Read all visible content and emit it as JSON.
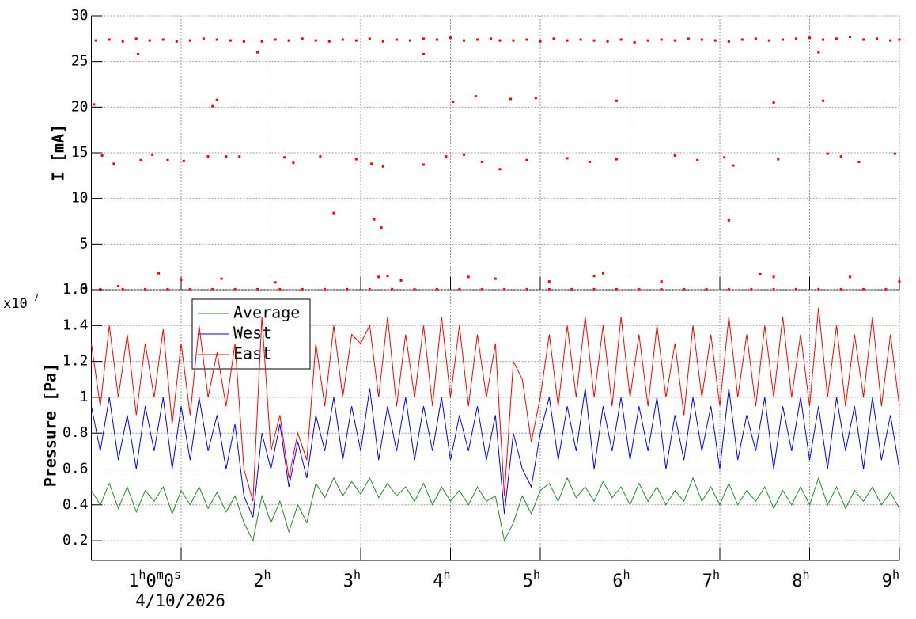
{
  "chart_data": [
    {
      "type": "scatter",
      "ylabel": "I [mA]",
      "color": "#ff0000",
      "xlim": [
        0,
        9
      ],
      "ylim": [
        0,
        30
      ],
      "xticks": [
        1,
        2,
        3,
        4,
        5,
        6,
        7,
        8,
        9
      ],
      "yticks": [
        0,
        5,
        10,
        15,
        20,
        25,
        30
      ],
      "grid": true,
      "x": [
        0.05,
        0.2,
        0.35,
        0.5,
        0.65,
        0.8,
        0.95,
        1.1,
        1.25,
        1.4,
        1.55,
        1.7,
        1.9,
        2.05,
        2.2,
        2.35,
        2.5,
        2.65,
        2.8,
        2.95,
        3.1,
        3.25,
        3.4,
        3.55,
        3.7,
        3.85,
        4.0,
        4.15,
        4.3,
        4.45,
        4.55,
        4.7,
        4.85,
        5.0,
        5.15,
        5.3,
        5.45,
        5.6,
        5.75,
        5.9,
        6.05,
        6.2,
        6.35,
        6.5,
        6.65,
        6.8,
        6.95,
        7.1,
        7.25,
        7.4,
        7.55,
        7.7,
        7.85,
        8.0,
        8.15,
        8.3,
        8.45,
        8.6,
        8.75,
        8.9,
        9.0,
        0.03,
        0.52,
        1.35,
        1.4,
        1.85,
        2.7,
        3.15,
        3.23,
        3.7,
        4.03,
        4.28,
        4.67,
        4.95,
        5.85,
        7.1,
        7.6,
        8.15,
        8.1,
        0.12,
        0.25,
        0.55,
        0.68,
        0.85,
        1.03,
        1.3,
        1.5,
        1.65,
        2.15,
        2.25,
        2.55,
        2.95,
        3.12,
        3.25,
        3.7,
        3.95,
        4.15,
        4.35,
        4.55,
        4.85,
        5.3,
        5.55,
        5.85,
        6.5,
        6.75,
        7.05,
        7.15,
        7.65,
        8.2,
        8.35,
        8.55,
        8.95,
        0.1,
        0.35,
        0.6,
        0.85,
        1.1,
        1.35,
        1.6,
        1.85,
        2.1,
        2.35,
        2.6,
        2.85,
        3.1,
        3.35,
        3.6,
        3.85,
        4.1,
        4.35,
        4.6,
        4.85,
        5.1,
        5.35,
        5.6,
        5.85,
        6.1,
        6.35,
        6.6,
        6.85,
        7.1,
        7.35,
        7.6,
        7.85,
        8.1,
        8.35,
        8.6,
        8.85,
        0.3,
        0.75,
        1.0,
        1.45,
        2.05,
        3.2,
        3.3,
        3.45,
        4.2,
        4.5,
        5.1,
        5.6,
        5.7,
        6.35,
        7.45,
        7.6,
        8.45,
        9.0
      ],
      "values": [
        27.3,
        27.4,
        27.2,
        27.5,
        27.3,
        27.4,
        27.2,
        27.3,
        27.5,
        27.4,
        27.3,
        27.2,
        27.2,
        27.4,
        27.3,
        27.5,
        27.3,
        27.2,
        27.4,
        27.3,
        27.5,
        27.2,
        27.4,
        27.3,
        27.5,
        27.4,
        27.6,
        27.3,
        27.4,
        27.5,
        27.3,
        27.3,
        27.4,
        27.2,
        27.5,
        27.3,
        27.4,
        27.3,
        27.2,
        27.4,
        27.1,
        27.3,
        27.4,
        27.3,
        27.5,
        27.4,
        27.3,
        27.2,
        27.4,
        27.5,
        27.3,
        27.4,
        27.5,
        27.6,
        27.4,
        27.5,
        27.7,
        27.4,
        27.5,
        27.3,
        27.4,
        20.3,
        25.8,
        20.1,
        20.8,
        26.0,
        8.4,
        7.7,
        6.8,
        25.8,
        20.6,
        21.2,
        20.9,
        21.0,
        20.7,
        7.6,
        20.5,
        20.7,
        26.0,
        14.7,
        13.8,
        14.2,
        14.8,
        14.2,
        14.1,
        14.6,
        14.6,
        14.6,
        14.5,
        13.9,
        14.6,
        14.3,
        13.8,
        13.5,
        13.7,
        14.6,
        14.8,
        14.0,
        13.2,
        14.2,
        14.4,
        14.0,
        14.3,
        14.7,
        14.2,
        14.5,
        13.6,
        14.3,
        14.9,
        14.6,
        14.0,
        14.9,
        0.05,
        0.05,
        0.05,
        0.05,
        0.05,
        0.05,
        0.05,
        0.05,
        0.05,
        0.05,
        0.05,
        0.05,
        0.05,
        0.05,
        0.05,
        0.05,
        0.05,
        0.05,
        0.05,
        0.05,
        0.05,
        0.05,
        0.05,
        0.05,
        0.05,
        0.05,
        0.05,
        0.05,
        0.05,
        0.05,
        0.05,
        0.05,
        0.05,
        0.05,
        0.05,
        0.05,
        0.4,
        1.8,
        1.1,
        1.2,
        0.8,
        1.4,
        1.5,
        1.0,
        1.4,
        1.2,
        0.9,
        1.5,
        1.8,
        0.9,
        1.7,
        1.4,
        1.4,
        0.9
      ]
    },
    {
      "type": "line",
      "ylabel": "Pressure [Pa]",
      "exponent_base": "x10",
      "exponent": "-7",
      "time_offset_label": "4/10/2026",
      "xlim": [
        0,
        9
      ],
      "ylim": [
        0.09,
        1.6
      ],
      "grid": true,
      "legend": "upper left",
      "xticks": [
        {
          "value": 1,
          "label": "1h0m0s"
        },
        {
          "value": 2,
          "label": "2h"
        },
        {
          "value": 3,
          "label": "3h"
        },
        {
          "value": 4,
          "label": "4h"
        },
        {
          "value": 5,
          "label": "5h"
        },
        {
          "value": 6,
          "label": "6h"
        },
        {
          "value": 7,
          "label": "7h"
        },
        {
          "value": 8,
          "label": "8h"
        },
        {
          "value": 9,
          "label": "9h"
        }
      ],
      "yticks": [
        0.2,
        0.4,
        0.6,
        0.8,
        1,
        1.2,
        1.4,
        1.6
      ],
      "x": [
        0,
        0.1,
        0.2,
        0.3,
        0.4,
        0.5,
        0.6,
        0.7,
        0.8,
        0.9,
        1,
        1.1,
        1.2,
        1.3,
        1.4,
        1.5,
        1.6,
        1.7,
        1.8,
        1.9,
        2,
        2.1,
        2.2,
        2.3,
        2.4,
        2.5,
        2.6,
        2.7,
        2.8,
        2.9,
        3,
        3.1,
        3.2,
        3.3,
        3.4,
        3.5,
        3.6,
        3.7,
        3.8,
        3.9,
        4,
        4.1,
        4.2,
        4.3,
        4.4,
        4.5,
        4.6,
        4.7,
        4.8,
        4.9,
        5,
        5.1,
        5.2,
        5.3,
        5.4,
        5.5,
        5.6,
        5.7,
        5.8,
        5.9,
        6,
        6.1,
        6.2,
        6.3,
        6.4,
        6.5,
        6.6,
        6.7,
        6.8,
        6.9,
        7,
        7.1,
        7.2,
        7.3,
        7.4,
        7.5,
        7.6,
        7.7,
        7.8,
        7.9,
        8,
        8.1,
        8.2,
        8.3,
        8.4,
        8.5,
        8.6,
        8.7,
        8.8,
        8.9,
        9
      ],
      "series": [
        {
          "name": "Average",
          "color": "#228b22",
          "values": [
            0.48,
            0.4,
            0.52,
            0.38,
            0.5,
            0.36,
            0.48,
            0.42,
            0.5,
            0.35,
            0.48,
            0.4,
            0.5,
            0.38,
            0.47,
            0.36,
            0.45,
            0.3,
            0.2,
            0.45,
            0.3,
            0.42,
            0.25,
            0.4,
            0.3,
            0.52,
            0.44,
            0.55,
            0.45,
            0.53,
            0.46,
            0.55,
            0.44,
            0.52,
            0.45,
            0.5,
            0.42,
            0.52,
            0.4,
            0.5,
            0.42,
            0.48,
            0.4,
            0.5,
            0.42,
            0.45,
            0.2,
            0.3,
            0.45,
            0.35,
            0.48,
            0.52,
            0.42,
            0.55,
            0.44,
            0.5,
            0.42,
            0.53,
            0.44,
            0.5,
            0.4,
            0.52,
            0.42,
            0.5,
            0.4,
            0.48,
            0.42,
            0.55,
            0.42,
            0.5,
            0.4,
            0.52,
            0.4,
            0.48,
            0.42,
            0.5,
            0.38,
            0.48,
            0.4,
            0.5,
            0.4,
            0.55,
            0.4,
            0.5,
            0.38,
            0.48,
            0.42,
            0.5,
            0.4,
            0.47,
            0.38
          ]
        },
        {
          "name": "West",
          "color": "#0000ff",
          "values": [
            0.95,
            0.7,
            1.0,
            0.65,
            0.9,
            0.6,
            0.95,
            0.7,
            1.0,
            0.6,
            0.95,
            0.65,
            1.0,
            0.7,
            0.9,
            0.6,
            0.85,
            0.45,
            0.33,
            0.8,
            0.6,
            0.85,
            0.5,
            0.75,
            0.55,
            0.9,
            0.7,
            1.0,
            0.65,
            0.95,
            0.7,
            1.05,
            0.65,
            0.95,
            0.7,
            1.0,
            0.65,
            0.95,
            0.7,
            1.0,
            0.65,
            0.9,
            0.7,
            0.95,
            0.65,
            0.9,
            0.35,
            0.8,
            0.6,
            0.5,
            0.8,
            1.0,
            0.65,
            0.95,
            0.7,
            1.05,
            0.6,
            0.95,
            0.7,
            1.0,
            0.65,
            0.95,
            0.7,
            1.0,
            0.6,
            0.9,
            0.65,
            1.0,
            0.7,
            0.95,
            0.6,
            1.05,
            0.65,
            0.9,
            0.7,
            1.0,
            0.6,
            0.95,
            0.7,
            1.0,
            0.65,
            0.95,
            0.6,
            1.0,
            0.7,
            0.95,
            0.6,
            1.0,
            0.65,
            0.9,
            0.6
          ]
        },
        {
          "name": "East",
          "color": "#ff0000",
          "values": [
            1.3,
            0.95,
            1.4,
            1.0,
            1.35,
            0.9,
            1.3,
            1.0,
            1.38,
            0.85,
            1.3,
            0.9,
            1.4,
            1.0,
            1.25,
            0.95,
            1.3,
            0.6,
            0.42,
            1.45,
            0.7,
            0.9,
            0.55,
            0.8,
            0.65,
            1.3,
            0.95,
            1.4,
            1.0,
            1.35,
            1.3,
            1.4,
            1.0,
            1.45,
            0.95,
            1.35,
            1.0,
            1.4,
            0.95,
            1.45,
            1.0,
            1.4,
            0.95,
            1.35,
            1.0,
            1.3,
            0.45,
            1.2,
            1.1,
            0.75,
            1.0,
            1.35,
            0.95,
            1.4,
            1.0,
            1.45,
            1.0,
            1.4,
            0.95,
            1.45,
            1.0,
            1.35,
            0.95,
            1.4,
            1.0,
            1.3,
            0.9,
            1.4,
            1.0,
            1.35,
            0.95,
            1.45,
            1.0,
            1.35,
            0.95,
            1.4,
            1.0,
            1.45,
            1.0,
            1.35,
            0.95,
            1.5,
            1.0,
            1.4,
            0.95,
            1.35,
            1.0,
            1.45,
            0.95,
            1.35,
            0.95
          ]
        }
      ]
    }
  ]
}
